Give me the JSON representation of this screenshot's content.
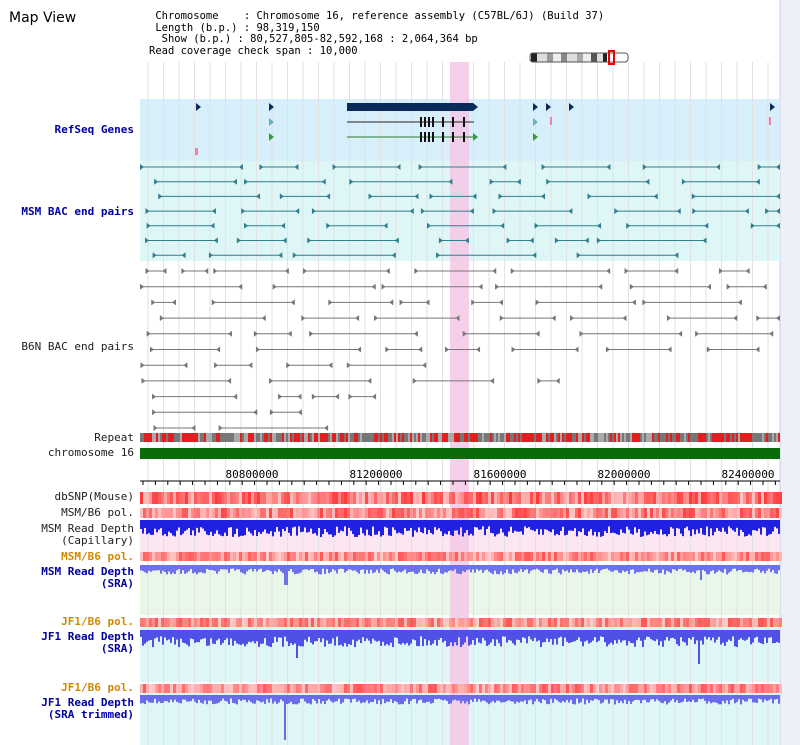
{
  "title": "Map View",
  "info": {
    "chromosome": {
      "key": " Chromosome   ",
      "value": "Chromosome 16, reference assembly (C57BL/6J) (Build 37)"
    },
    "length": {
      "key": " Length (b.p.)",
      "value": "98,319,150"
    },
    "show": {
      "key": "  Show (b.p.)",
      "value": "80,527,805-82,592,168 : 2,064,364 bp"
    },
    "coverage": {
      "key": "Read coverage check span",
      "value": "10,000"
    }
  },
  "tracks": {
    "refseq": "RefSeq Genes",
    "msm_bac": "MSM BAC end pairs",
    "b6n_bac": "B6N BAC end pairs",
    "repeat": "Repeat",
    "chrom": "chromosome 16",
    "dbsnp": "dbSNP(Mouse)",
    "msm_pol1": "MSM/B6 pol.",
    "msm_cap": [
      "MSM Read Depth",
      "(Capillary)"
    ],
    "msm_pol2": "MSM/B6 pol.",
    "msm_sra": [
      "MSM Read Depth",
      "(SRA)"
    ],
    "jf1_pol1": "JF1/B6 pol.",
    "jf1_sra": [
      "JF1 Read Depth",
      "(SRA)"
    ],
    "jf1_pol2": "JF1/B6 pol.",
    "jf1_trim": [
      "JF1 Read Depth",
      "(SRA trimmed)"
    ]
  },
  "axis": {
    "ticks": [
      "80800000",
      "81200000",
      "81600000",
      "82000000",
      "82400000"
    ]
  },
  "colors": {
    "refseq_bg": "#d7effa",
    "msm_bg": "#dff6f6",
    "highlight": "#f5c8e8",
    "msm_bac": "#2f7f8f",
    "b6n_bac": "#777777",
    "gene_dark": "#0a2a5a",
    "depth_blue": "#3333dd",
    "chrom_green": "#0a6b0a"
  }
}
